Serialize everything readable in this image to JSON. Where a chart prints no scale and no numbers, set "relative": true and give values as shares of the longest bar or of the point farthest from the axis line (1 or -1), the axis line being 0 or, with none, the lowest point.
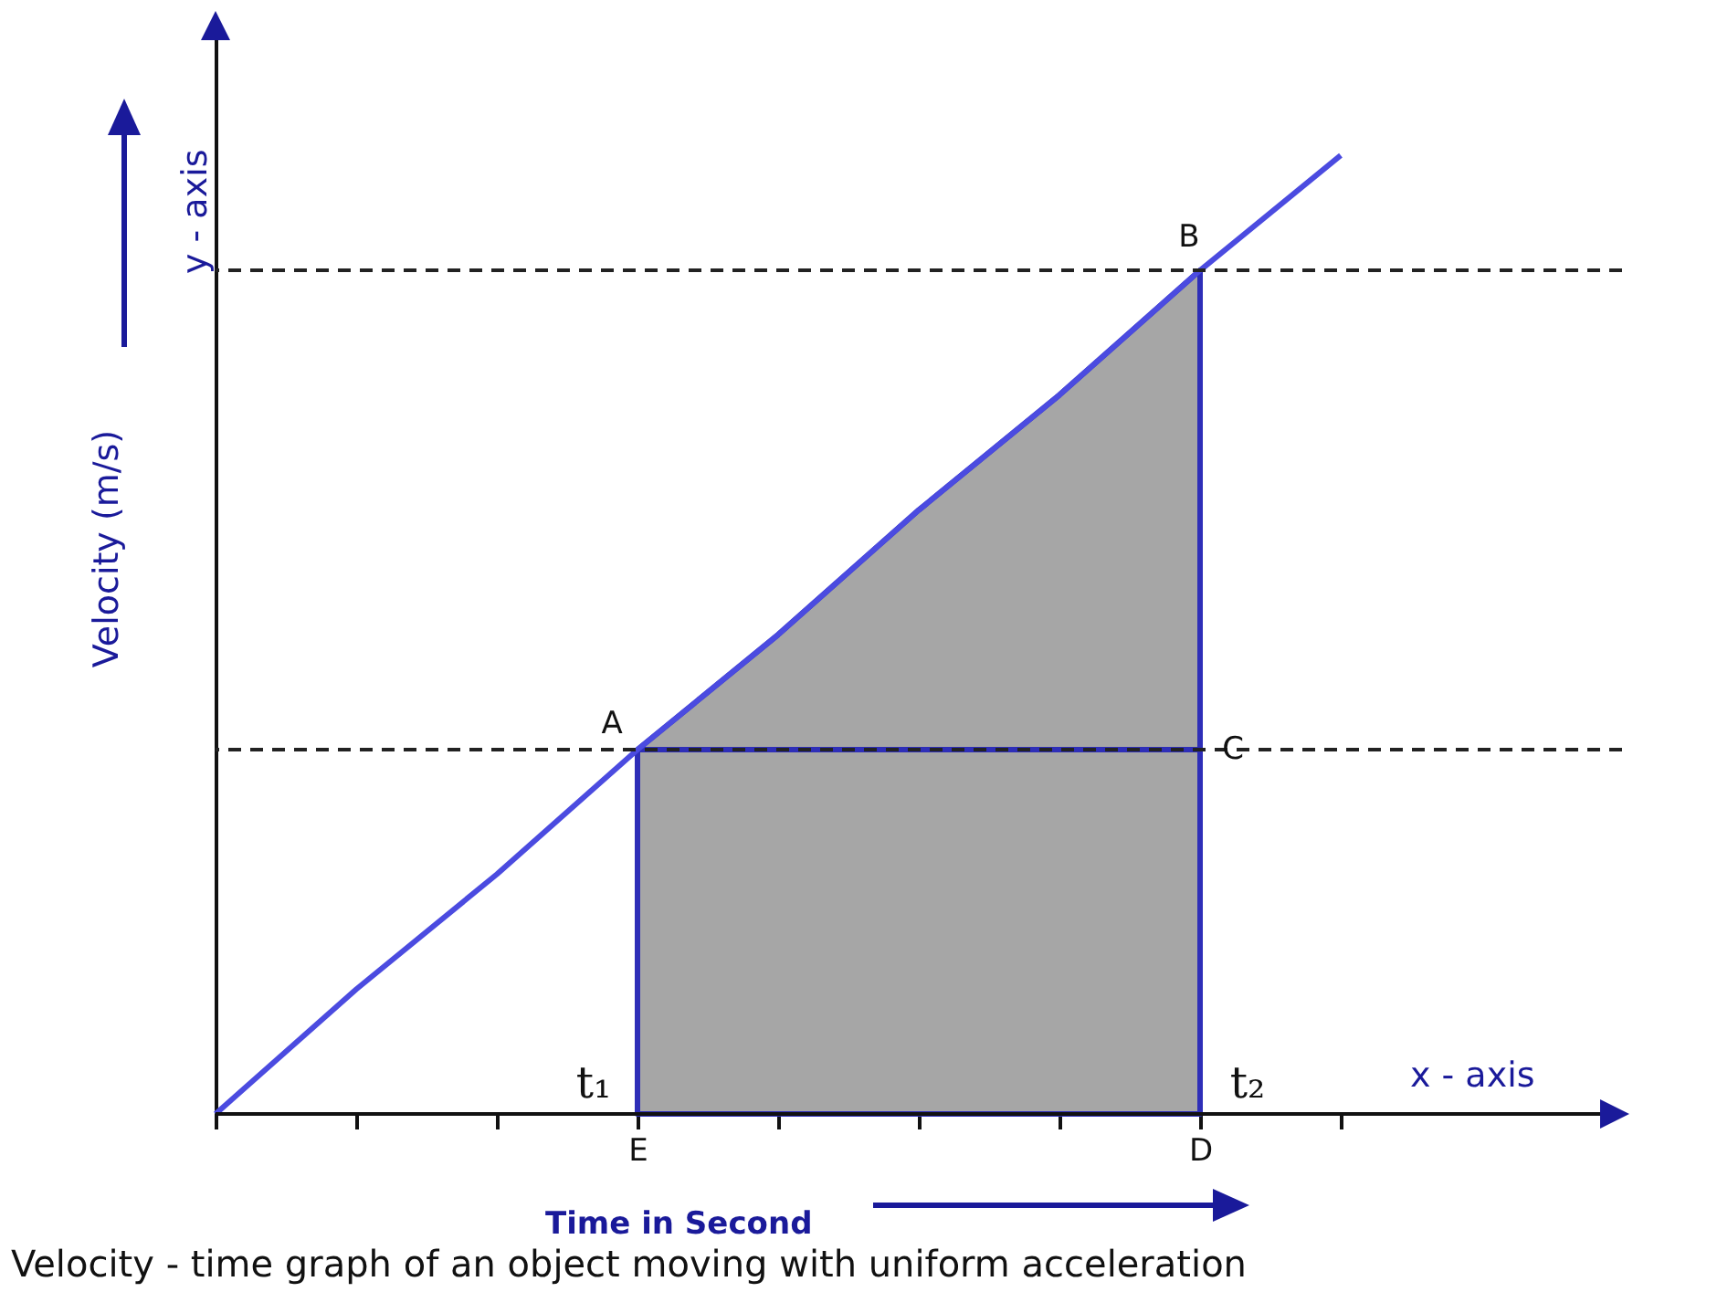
{
  "chart_data": {
    "type": "line",
    "relative": true,
    "xlabel": "Time in Second",
    "ylabel": "Velocity (m/s)",
    "categories": [
      null,
      null,
      null,
      "E",
      null,
      null,
      null,
      "D",
      null
    ],
    "series": [
      {
        "type": "area",
        "color": "#a6a6a6",
        "values": [
          null,
          null,
          null,
          0.38,
          0.5,
          0.63,
          0.75,
          0.88,
          null
        ]
      },
      {
        "color": "#2e2eb8",
        "values": [
          null,
          null,
          null,
          0.38,
          0.38,
          0.38,
          0.38,
          0.38,
          null
        ]
      },
      {
        "color": "#4b4be0",
        "values": [
          0,
          0.13,
          0.25,
          0.38,
          0.5,
          0.63,
          0.75,
          0.88,
          1
        ]
      }
    ],
    "ref_lines": [
      {
        "axis": "y",
        "value": 0.38,
        "color": "#222222",
        "line_style": "dashed"
      },
      {
        "axis": "y",
        "value": 0.88,
        "color": "#222222",
        "line_style": "dashed"
      }
    ],
    "annotations": [
      {
        "text": "A",
        "x": "E",
        "y": 0.38
      },
      {
        "text": "B",
        "x": "D",
        "y": 0.88
      },
      {
        "text": "C",
        "x": "D",
        "y": 0.38
      },
      {
        "text": "t₁",
        "x": "E",
        "y": 0
      },
      {
        "text": "t₂",
        "x": "D",
        "y": 0
      },
      "y - axis",
      "x - axis",
      "Velocity - time graph of an object moving with uniform acceleration"
    ]
  }
}
